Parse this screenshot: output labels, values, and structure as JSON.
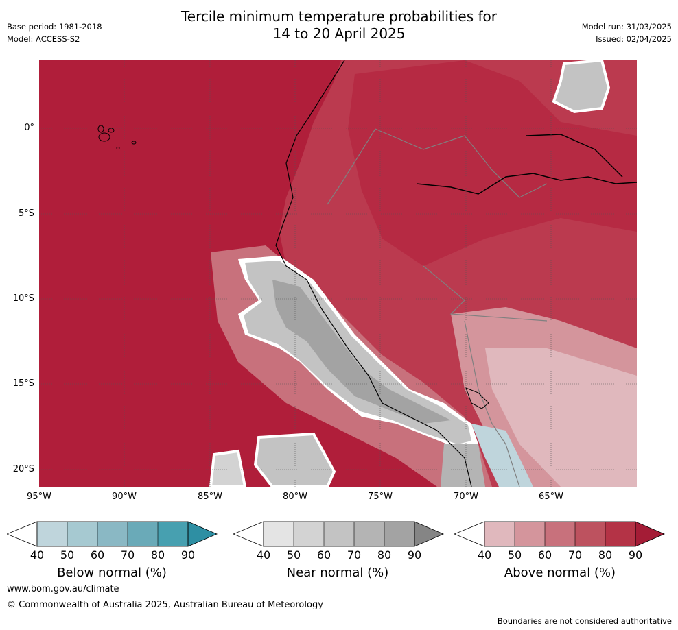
{
  "title": {
    "line1": "Tercile minimum temperature probabilities for",
    "line2": "14 to 20 April 2025"
  },
  "meta_left": {
    "base_period": "Base period: 1981-2018",
    "model": "Model: ACCESS-S2"
  },
  "meta_right": {
    "model_run": "Model run: 31/03/2025",
    "issued": "Issued: 02/04/2025"
  },
  "map": {
    "lat_labels": [
      "0°",
      "5°S",
      "10°S",
      "15°S",
      "20°S"
    ],
    "lon_labels": [
      "95°W",
      "90°W",
      "85°W",
      "80°W",
      "75°W",
      "70°W",
      "65°W"
    ]
  },
  "colorbars": [
    {
      "name": "below",
      "title": "Below normal (%)",
      "ticks": [
        "40",
        "50",
        "60",
        "70",
        "80",
        "90"
      ],
      "colors": [
        "#bfd5dc",
        "#a6c9d1",
        "#8ab8c4",
        "#6aaab8",
        "#47a0b0",
        "#2e8fa3"
      ]
    },
    {
      "name": "near",
      "title": "Near normal (%)",
      "ticks": [
        "40",
        "50",
        "60",
        "70",
        "80",
        "90"
      ],
      "colors": [
        "#e4e4e4",
        "#d3d3d3",
        "#c3c3c3",
        "#b4b4b4",
        "#a3a3a3",
        "#858585"
      ]
    },
    {
      "name": "above",
      "title": "Above normal (%)",
      "ticks": [
        "40",
        "50",
        "60",
        "70",
        "80",
        "90"
      ],
      "colors": [
        "#e0b8bd",
        "#d4959c",
        "#c8717c",
        "#bd525f",
        "#b43346",
        "#a41c36"
      ]
    }
  ],
  "footer": {
    "website": "www.bom.gov.au/climate",
    "copyright": "© Commonwealth of Australia 2025, Australian Bureau of Meteorology",
    "note": "Boundaries are not considered authoritative"
  }
}
